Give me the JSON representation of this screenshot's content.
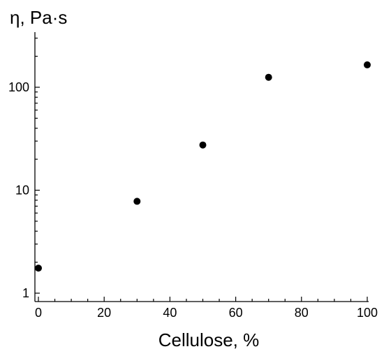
{
  "chart_data": {
    "type": "scatter",
    "title": "",
    "xlabel": "Cellulose, %",
    "ylabel": "η, Pa·s",
    "y_scale": "log",
    "xlim": [
      0,
      100
    ],
    "ylim": [
      1,
      350
    ],
    "x_ticks": [
      0,
      20,
      40,
      60,
      80,
      100
    ],
    "x_tick_labels": [
      "0",
      "20",
      "40",
      "60",
      "80",
      "100"
    ],
    "y_ticks": [
      1,
      10,
      100
    ],
    "y_tick_labels": [
      "1",
      "10",
      "100"
    ],
    "grid": false,
    "marker_color": "#000000",
    "series": [
      {
        "x": [
          0,
          30,
          50,
          70,
          100
        ],
        "y": [
          1.75,
          7.8,
          27.5,
          125,
          165
        ]
      }
    ]
  }
}
